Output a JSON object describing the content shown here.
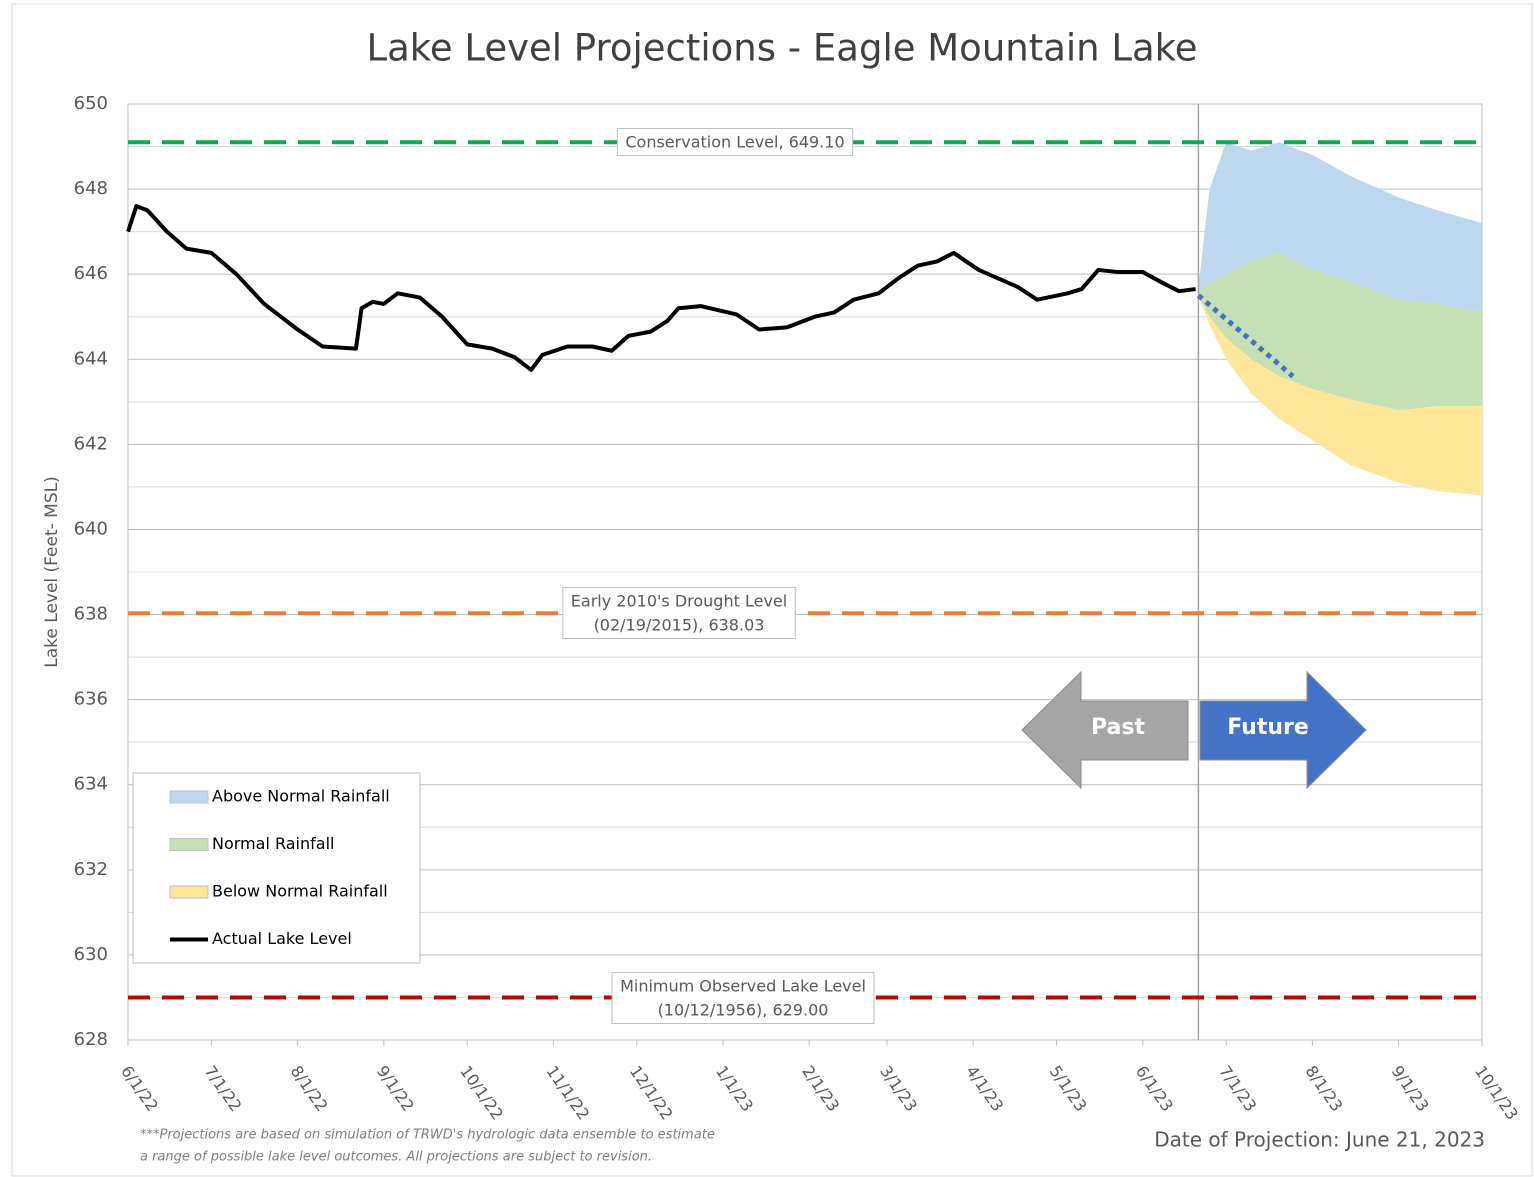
{
  "chart_data": {
    "type": "line",
    "title": "Lake Level Projections - Eagle Mountain Lake",
    "y_label": "Lake Level (Feet- MSL)",
    "ylim": [
      628,
      650
    ],
    "yticks": [
      628,
      630,
      632,
      634,
      636,
      638,
      640,
      642,
      644,
      646,
      648,
      650
    ],
    "minor_yticks": [
      629,
      631,
      633,
      635,
      637,
      639,
      641,
      643,
      645,
      647,
      649
    ],
    "grid": true,
    "xlim": [
      "2022-06-01",
      "2023-10-01"
    ],
    "xticks": [
      {
        "value": "2022-06-01",
        "label": "6/1/22"
      },
      {
        "value": "2022-07-01",
        "label": "7/1/22"
      },
      {
        "value": "2022-08-01",
        "label": "8/1/22"
      },
      {
        "value": "2022-09-01",
        "label": "9/1/22"
      },
      {
        "value": "2022-10-01",
        "label": "10/1/22"
      },
      {
        "value": "2022-11-01",
        "label": "11/1/22"
      },
      {
        "value": "2022-12-01",
        "label": "12/1/22"
      },
      {
        "value": "2023-01-01",
        "label": "1/1/23"
      },
      {
        "value": "2023-02-01",
        "label": "2/1/23"
      },
      {
        "value": "2023-03-01",
        "label": "3/1/23"
      },
      {
        "value": "2023-04-01",
        "label": "4/1/23"
      },
      {
        "value": "2023-05-01",
        "label": "5/1/23"
      },
      {
        "value": "2023-06-01",
        "label": "6/1/23"
      },
      {
        "value": "2023-07-01",
        "label": "7/1/23"
      },
      {
        "value": "2023-08-01",
        "label": "8/1/23"
      },
      {
        "value": "2023-09-01",
        "label": "9/1/23"
      },
      {
        "value": "2023-10-01",
        "label": "10/1/23"
      }
    ],
    "projection_date": "2023-06-21",
    "bands": {
      "x": [
        "2023-06-21",
        "2023-06-25",
        "2023-07-01",
        "2023-07-10",
        "2023-07-20",
        "2023-08-01",
        "2023-08-15",
        "2023-09-01",
        "2023-09-15",
        "2023-10-01"
      ],
      "series": [
        {
          "name": "Above Normal Rainfall",
          "color": "#bdd7ee",
          "upper": [
            645.7,
            648.0,
            649.1,
            648.9,
            649.1,
            648.8,
            648.3,
            647.8,
            647.5,
            647.2
          ],
          "lower": [
            645.6,
            645.8,
            646.0,
            646.3,
            646.5,
            646.1,
            645.8,
            645.4,
            645.3,
            645.1
          ]
        },
        {
          "name": "Normal Rainfall",
          "color": "#c5e0b4",
          "upper": [
            645.6,
            645.8,
            646.0,
            646.3,
            646.5,
            646.1,
            645.8,
            645.4,
            645.3,
            645.1
          ],
          "lower": [
            645.5,
            645.0,
            644.5,
            644.0,
            643.6,
            643.3,
            643.05,
            642.8,
            642.9,
            642.9
          ]
        },
        {
          "name": "Below Normal Rainfall",
          "color": "#ffe699",
          "upper": [
            645.5,
            645.0,
            644.5,
            644.0,
            643.6,
            643.3,
            643.05,
            642.8,
            642.9,
            642.9
          ],
          "lower": [
            645.5,
            644.8,
            644.0,
            643.2,
            642.6,
            642.1,
            641.5,
            641.1,
            640.9,
            640.8
          ]
        }
      ]
    },
    "series": [
      {
        "name": "Actual Lake Level",
        "color": "#000000",
        "x": [
          "2022-06-01",
          "2022-06-04",
          "2022-06-08",
          "2022-06-15",
          "2022-06-22",
          "2022-07-01",
          "2022-07-10",
          "2022-07-20",
          "2022-08-01",
          "2022-08-10",
          "2022-08-22",
          "2022-08-24",
          "2022-08-28",
          "2022-09-01",
          "2022-09-06",
          "2022-09-14",
          "2022-09-22",
          "2022-10-01",
          "2022-10-10",
          "2022-10-18",
          "2022-10-24",
          "2022-10-28",
          "2022-11-06",
          "2022-11-15",
          "2022-11-22",
          "2022-11-28",
          "2022-12-06",
          "2022-12-12",
          "2022-12-16",
          "2022-12-24",
          "2023-01-06",
          "2023-01-14",
          "2023-01-24",
          "2023-02-03",
          "2023-02-10",
          "2023-02-17",
          "2023-02-26",
          "2023-03-05",
          "2023-03-12",
          "2023-03-19",
          "2023-03-25",
          "2023-04-03",
          "2023-04-10",
          "2023-04-17",
          "2023-04-24",
          "2023-05-05",
          "2023-05-10",
          "2023-05-16",
          "2023-05-23",
          "2023-06-01",
          "2023-06-08",
          "2023-06-14",
          "2023-06-20"
        ],
        "values": [
          647.0,
          647.6,
          647.5,
          647.0,
          646.6,
          646.5,
          646.0,
          645.3,
          644.7,
          644.3,
          644.25,
          645.2,
          645.35,
          645.3,
          645.55,
          645.45,
          645.0,
          644.35,
          644.25,
          644.05,
          643.75,
          644.1,
          644.3,
          644.3,
          644.2,
          644.55,
          644.65,
          644.9,
          645.2,
          645.25,
          645.05,
          644.7,
          644.75,
          645.0,
          645.1,
          645.4,
          645.55,
          645.9,
          646.2,
          646.3,
          646.5,
          646.1,
          645.9,
          645.7,
          645.4,
          645.55,
          645.65,
          646.1,
          646.05,
          646.05,
          645.8,
          645.6,
          645.65
        ]
      }
    ],
    "trend": {
      "color": "#4472c4",
      "x": [
        "2023-06-21",
        "2023-07-25"
      ],
      "values": [
        645.5,
        643.6
      ]
    },
    "reference_lines": [
      {
        "value": 649.1,
        "color": "#00b050",
        "label": [
          "Conservation Level, 649.10"
        ]
      },
      {
        "value": 638.03,
        "color": "#ed7d31",
        "label": [
          "Early 2010's Drought Level",
          "(02/19/2015), 638.03"
        ]
      },
      {
        "value": 629.0,
        "color": "#c00000",
        "label": [
          "Minimum Observed Lake Level",
          "(10/12/1956), 629.00"
        ]
      }
    ],
    "arrows": [
      {
        "label": "Past",
        "color": "#a5a5a5"
      },
      {
        "label": "Future",
        "color": "#4472c4"
      }
    ],
    "footnote": [
      "***Projections are based on simulation of TRWD's hydrologic data ensemble to estimate",
      "a range of possible lake level outcomes.  All projections are subject to revision."
    ],
    "projection_note": "Date of Projection: June 21, 2023"
  }
}
